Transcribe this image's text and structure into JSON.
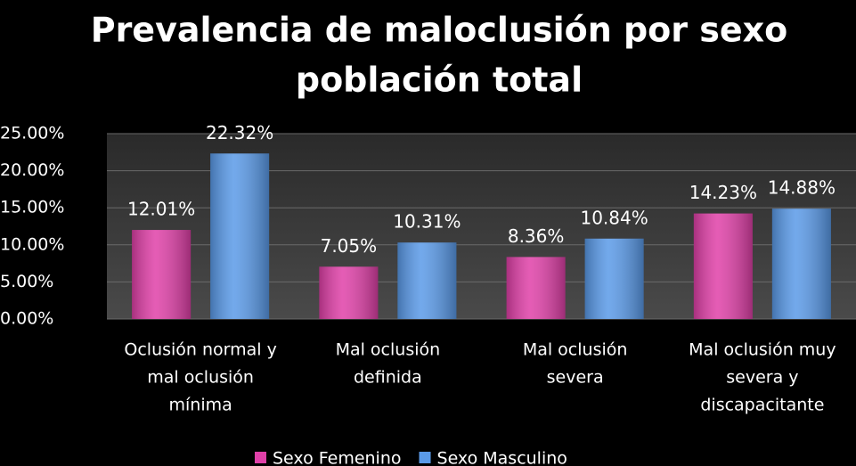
{
  "chart_data": {
    "type": "bar",
    "title_lines": [
      "Prevalencia de maloclusión por sexo",
      "población total"
    ],
    "categories": [
      [
        "Oclusión normal y",
        "mal oclusión",
        "mínima"
      ],
      [
        "Mal oclusión",
        "definida"
      ],
      [
        "Mal oclusión",
        "severa"
      ],
      [
        "Mal oclusión muy",
        "severa y",
        "discapacitante"
      ]
    ],
    "series": [
      {
        "name": "Sexo Femenino",
        "color": "#e040a8",
        "values": [
          12.01,
          7.05,
          8.36,
          14.23
        ],
        "value_labels": [
          "12.01%",
          "7.05%",
          "8.36%",
          "14.23%"
        ]
      },
      {
        "name": "Sexo Masculino",
        "color": "#5a9ae8",
        "values": [
          22.32,
          10.31,
          10.84,
          14.88
        ],
        "value_labels": [
          "22.32%",
          "10.31%",
          "10.84%",
          "14.88%"
        ]
      }
    ],
    "ylim": [
      0,
      25
    ],
    "yticks": [
      {
        "value": 0,
        "label": "0.00%"
      },
      {
        "value": 5,
        "label": "5.00%"
      },
      {
        "value": 10,
        "label": "10.00%"
      },
      {
        "value": 15,
        "label": "15.00%"
      },
      {
        "value": 20,
        "label": "20.00%"
      },
      {
        "value": 25,
        "label": "25.00%"
      }
    ],
    "grid": true,
    "legend": "bottom"
  }
}
